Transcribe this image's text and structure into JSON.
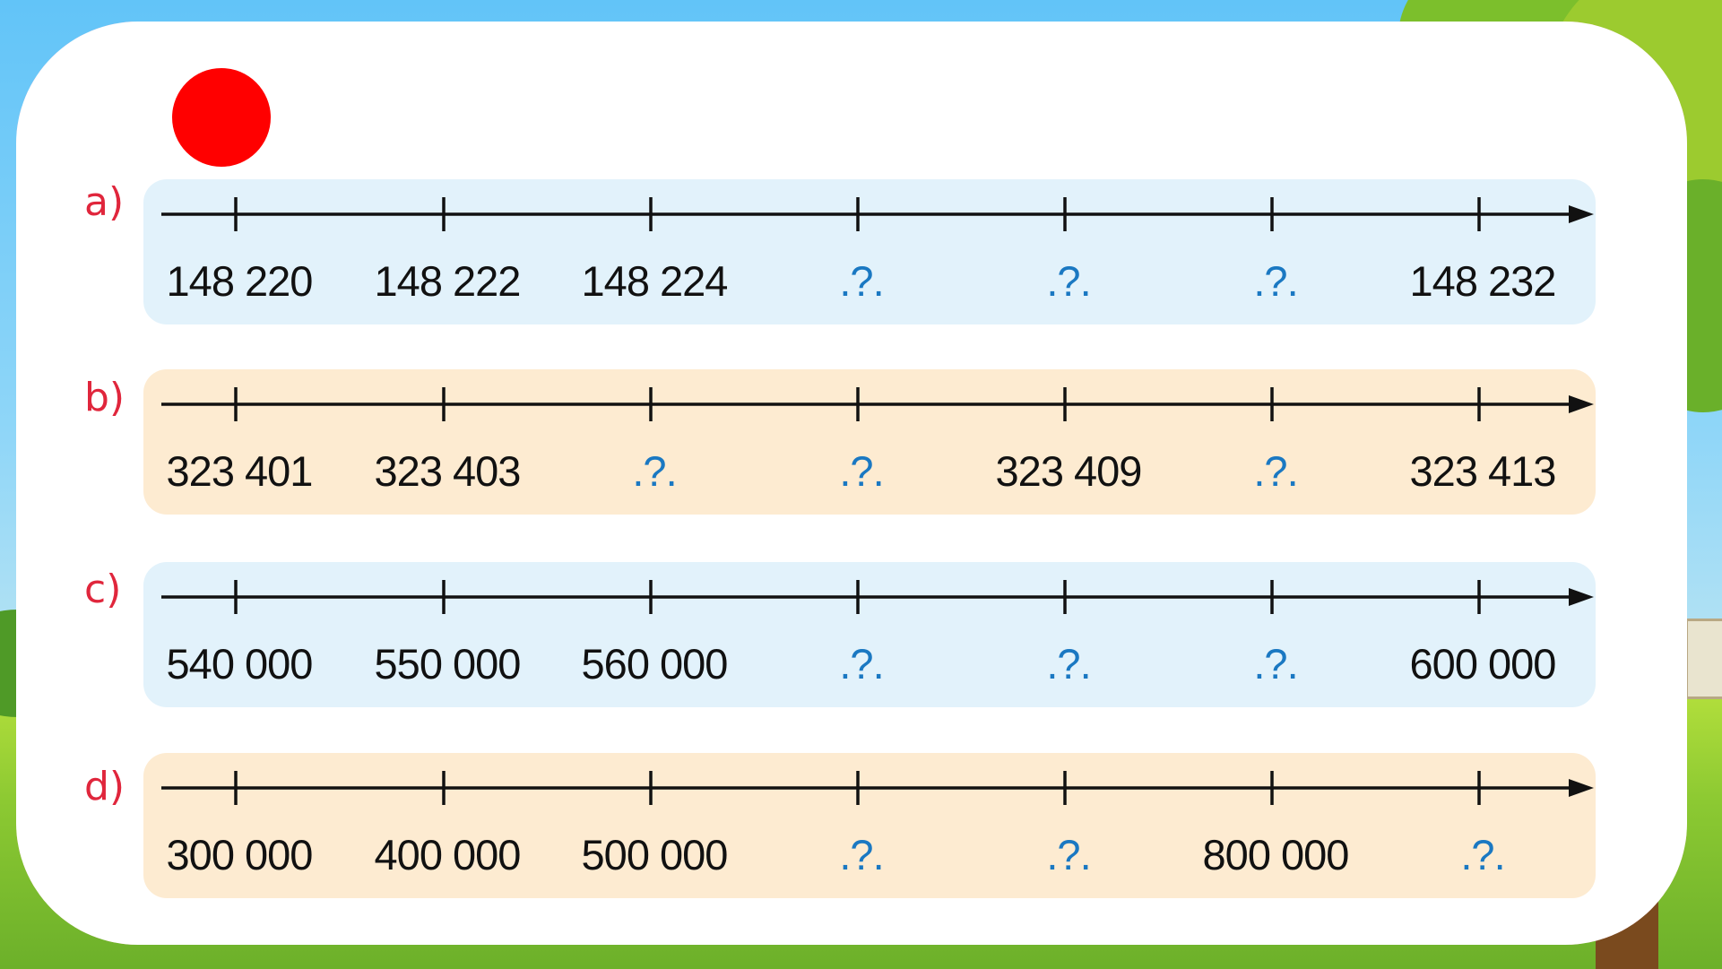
{
  "rows": [
    {
      "label": "a)",
      "values": [
        "148 220",
        "148 222",
        "148 224",
        ".?.",
        ".?.",
        ".?.",
        "148 232"
      ],
      "bg": "#e2f2fb"
    },
    {
      "label": "b)",
      "values": [
        "323 401",
        "323 403",
        ".?.",
        ".?.",
        "323 409",
        ".?.",
        "323 413"
      ],
      "bg": "#fdebd1"
    },
    {
      "label": "c)",
      "values": [
        "540 000",
        "550 000",
        "560 000",
        ".?.",
        ".?.",
        ".?.",
        "600 000"
      ],
      "bg": "#e2f2fb"
    },
    {
      "label": "d)",
      "values": [
        "300 000",
        "400 000",
        "500 000",
        ".?.",
        ".?.",
        "800 000",
        ".?."
      ],
      "bg": "#fdebd1"
    }
  ],
  "colors": {
    "label": "#e0263c",
    "placeholder": "#1a78c2",
    "dot": "#ff0000"
  }
}
